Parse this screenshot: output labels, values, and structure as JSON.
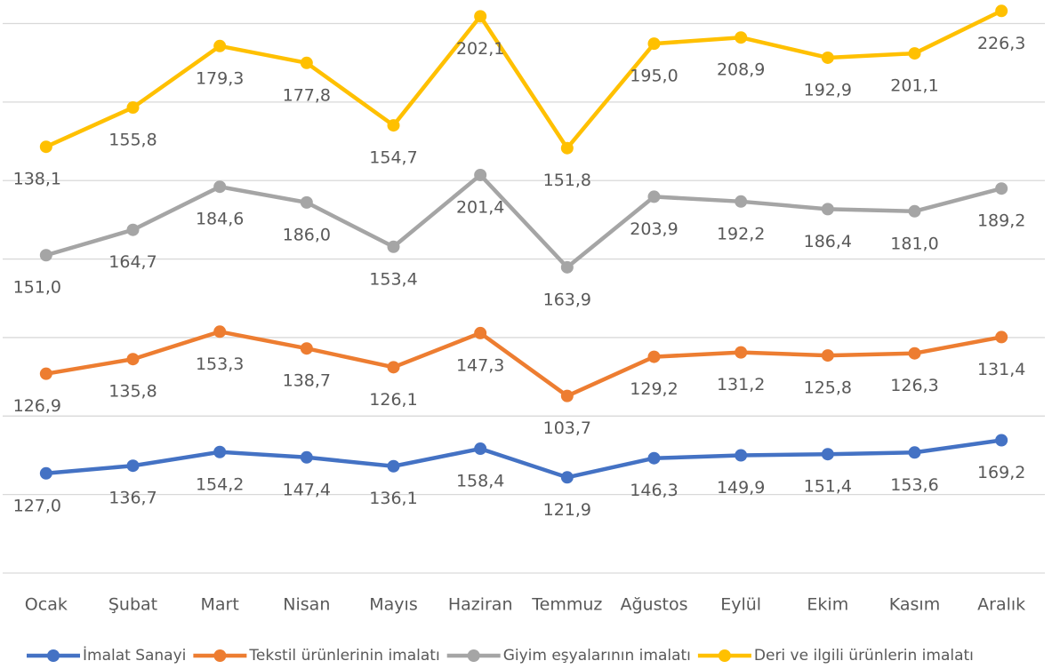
{
  "chart_data": {
    "type": "line",
    "stacked": true,
    "categories": [
      "Ocak",
      "Şubat",
      "Mart",
      "Nisan",
      "Mayıs",
      "Haziran",
      "Temmuz",
      "Ağustos",
      "Eylül",
      "Ekim",
      "Kasım",
      "Aralık"
    ],
    "series": [
      {
        "name": "İmalat Sanayi",
        "color": "#4472c4",
        "values": [
          127.0,
          136.7,
          154.2,
          147.4,
          136.1,
          158.4,
          121.9,
          146.3,
          149.9,
          151.4,
          153.6,
          169.2
        ],
        "value_labels": [
          "127,0",
          "136,7",
          "154,2",
          "147,4",
          "136,1",
          "158,4",
          "121,9",
          "146,3",
          "149,9",
          "151,4",
          "153,6",
          "169,2"
        ]
      },
      {
        "name": "Tekstil ürünlerinin imalatı",
        "color": "#ed7d31",
        "values": [
          126.9,
          135.8,
          153.3,
          138.7,
          126.1,
          147.3,
          103.7,
          129.2,
          131.2,
          125.8,
          126.3,
          131.4
        ],
        "value_labels": [
          "126,9",
          "135,8",
          "153,3",
          "138,7",
          "126,1",
          "147,3",
          "103,7",
          "129,2",
          "131,2",
          "125,8",
          "126,3",
          "131,4"
        ]
      },
      {
        "name": "Giyim eşyalarının imalatı",
        "color": "#a5a5a5",
        "values": [
          151.0,
          164.7,
          184.6,
          186.0,
          153.4,
          201.4,
          163.9,
          203.9,
          192.2,
          186.4,
          181.0,
          189.2
        ],
        "value_labels": [
          "151,0",
          "164,7",
          "184,6",
          "186,0",
          "153,4",
          "201,4",
          "163,9",
          "203,9",
          "192,2",
          "186,4",
          "181,0",
          "189,2"
        ]
      },
      {
        "name": "Deri ve ilgili ürünlerin imalatı",
        "color": "#ffc000",
        "values": [
          138.1,
          155.8,
          179.3,
          177.8,
          154.7,
          202.1,
          151.8,
          195.0,
          208.9,
          192.9,
          201.1,
          226.3
        ],
        "value_labels": [
          "138,1",
          "155,8",
          "179,3",
          "177,8",
          "154,7",
          "202,1",
          "151,8",
          "195,0",
          "208,9",
          "192,9",
          "201,1",
          "226,3"
        ]
      }
    ],
    "ylim": [
      0,
      730
    ],
    "yticks": [
      0,
      100,
      200,
      300,
      400,
      500,
      600,
      700
    ],
    "grid": true,
    "legend": "bottom"
  }
}
